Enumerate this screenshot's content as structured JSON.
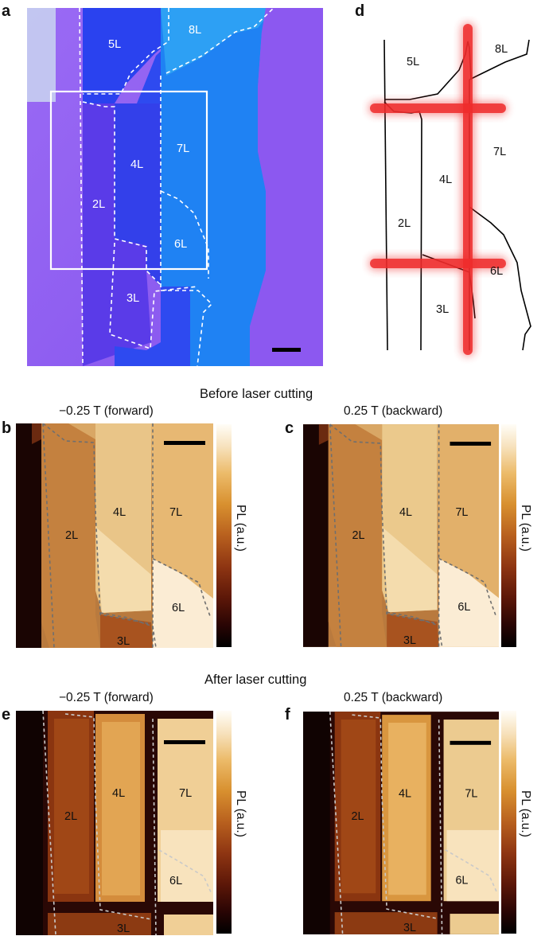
{
  "panel_letters": {
    "a": "a",
    "b": "b",
    "c": "c",
    "d": "d",
    "e": "e",
    "f": "f"
  },
  "sections": {
    "before": "Before laser cutting",
    "after": "After laser cutting"
  },
  "panel_titles": {
    "b": "−0.25 T (forward)",
    "c": "0.25 T (backward)",
    "e": "−0.25 T (forward)",
    "f": "0.25 T (backward)"
  },
  "colorbar_label": "PL (a.u.)",
  "layers": {
    "2L": "2L",
    "3L": "3L",
    "4L": "4L",
    "5L": "5L",
    "6L": "6L",
    "7L": "7L",
    "8L": "8L"
  },
  "colors": {
    "flake_purple": "#8a57f2",
    "flake_blue_dark": "#2a47f0",
    "flake_blue_light": "#1e86f3",
    "laser_red": "#ef2b2b",
    "dash_white": "#ffffff",
    "dash_gray": "#7a7a7a"
  }
}
